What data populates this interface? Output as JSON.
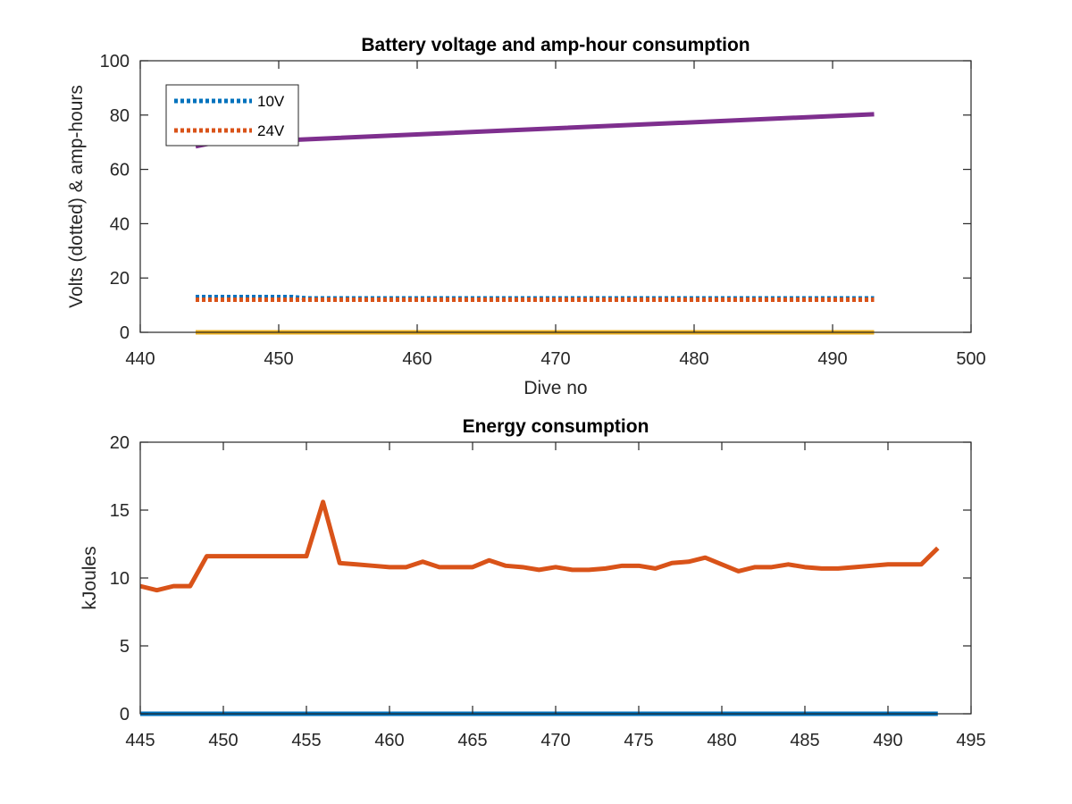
{
  "chart_data": [
    {
      "type": "line",
      "title": "Battery voltage and amp-hour consumption",
      "xlabel": "Dive no",
      "ylabel": "Volts (dotted) & amp-hours",
      "xlim": [
        440,
        500
      ],
      "ylim": [
        0,
        100
      ],
      "xticks": [
        440,
        450,
        460,
        470,
        480,
        490,
        500
      ],
      "yticks": [
        0,
        20,
        40,
        60,
        80,
        100
      ],
      "grid": false,
      "legend_position": "top-left",
      "series": [
        {
          "name": "10V",
          "color": "#0072BD",
          "style": "dotted",
          "x": [
            444,
            451,
            452,
            456,
            493
          ],
          "y": [
            13.0,
            13.0,
            12.5,
            12.5,
            12.5
          ]
        },
        {
          "name": "24V",
          "color": "#D95319",
          "style": "dotted",
          "x": [
            444,
            493
          ],
          "y": [
            12.0,
            12.0
          ]
        },
        {
          "color": "#EDB120",
          "style": "solid",
          "x": [
            444,
            493
          ],
          "y": [
            0,
            0
          ]
        },
        {
          "color": "#7E2F8E",
          "style": "solid",
          "x": [
            444,
            445,
            493
          ],
          "y": [
            68.5,
            69.5,
            80.3
          ]
        }
      ]
    },
    {
      "type": "line",
      "title": "Energy consumption",
      "xlabel": "",
      "ylabel": "kJoules",
      "xlim": [
        445,
        495
      ],
      "ylim": [
        0,
        20
      ],
      "xticks": [
        445,
        450,
        455,
        460,
        465,
        470,
        475,
        480,
        485,
        490,
        495
      ],
      "yticks": [
        0,
        5,
        10,
        15,
        20
      ],
      "grid": false,
      "series": [
        {
          "color": "#0072BD",
          "style": "solid",
          "x": [
            445,
            493
          ],
          "y": [
            0,
            0
          ]
        },
        {
          "color": "#D95319",
          "style": "solid",
          "x": [
            445,
            446,
            447,
            448,
            449,
            450,
            451,
            452,
            453,
            454,
            455,
            456,
            457,
            458,
            459,
            460,
            461,
            462,
            463,
            464,
            465,
            466,
            467,
            468,
            469,
            470,
            471,
            472,
            473,
            474,
            475,
            476,
            477,
            478,
            479,
            480,
            481,
            482,
            483,
            484,
            485,
            486,
            487,
            488,
            489,
            490,
            491,
            492,
            493
          ],
          "y": [
            9.4,
            9.1,
            9.4,
            9.4,
            11.6,
            11.6,
            11.6,
            11.6,
            11.6,
            11.6,
            11.6,
            15.6,
            11.1,
            11.0,
            10.9,
            10.8,
            10.8,
            11.2,
            10.8,
            10.8,
            10.8,
            11.3,
            10.9,
            10.8,
            10.6,
            10.8,
            10.6,
            10.6,
            10.7,
            10.9,
            10.9,
            10.7,
            11.1,
            11.2,
            11.5,
            11.0,
            10.5,
            10.8,
            10.8,
            11.0,
            10.8,
            10.7,
            10.7,
            10.8,
            10.9,
            11.0,
            11.0,
            11.0,
            12.2
          ]
        }
      ]
    }
  ]
}
